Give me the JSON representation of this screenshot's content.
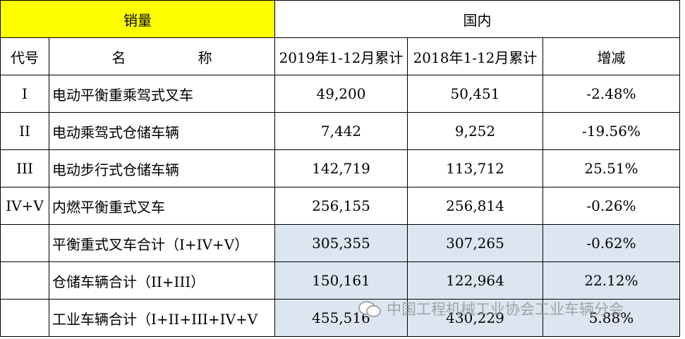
{
  "header": {
    "sales_label": "销量",
    "domestic_label": "国内"
  },
  "columns": {
    "code": "代号",
    "name": "名 称",
    "y2019": "2019年1-12月累计",
    "y2018": "2018年1-12月累计",
    "change": "增减"
  },
  "rows": [
    {
      "code": "I",
      "name": "电动平衡重乘驾式叉车",
      "y2019": "49,200",
      "y2018": "50,451",
      "change": "-2.48%"
    },
    {
      "code": "II",
      "name": "电动乘驾式仓储车辆",
      "y2019": "7,442",
      "y2018": "9,252",
      "change": "-19.56%"
    },
    {
      "code": "III",
      "name": "电动步行式仓储车辆",
      "y2019": "142,719",
      "y2018": "113,712",
      "change": "25.51%"
    },
    {
      "code": "IV+V",
      "name": "内燃平衡重式叉车",
      "y2019": "256,155",
      "y2018": "256,814",
      "change": "-0.26%"
    },
    {
      "code": "",
      "name": "平衡重式叉车合计（I+IV+V）",
      "y2019": "305,355",
      "y2018": "307,265",
      "change": "-0.62%"
    },
    {
      "code": "",
      "name": "仓储车辆合计（II+III）",
      "y2019": "150,161",
      "y2018": "122,964",
      "change": "22.12%"
    },
    {
      "code": "",
      "name": "工业车辆合计（I+II+III+IV+V",
      "y2019": "455,516",
      "y2018": "430,229",
      "change": "5.88%"
    }
  ],
  "watermark": {
    "icon": "wechat-icon",
    "text": "中国工程机械工业协会工业车辆分会"
  },
  "colors": {
    "header_highlight": "#ffff00",
    "subtotal_shade": "#dce6f1"
  }
}
